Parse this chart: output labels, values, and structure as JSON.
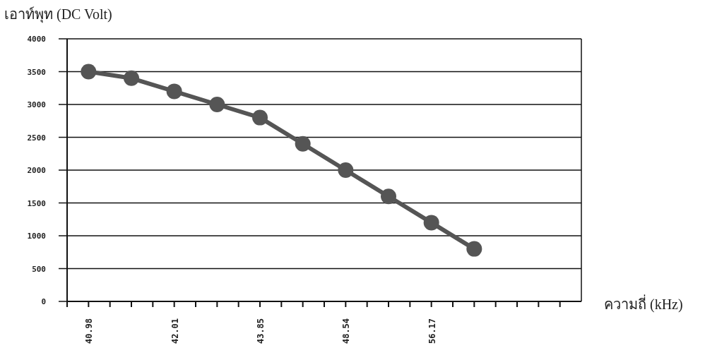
{
  "chart_data": {
    "type": "line",
    "ylabel": "เอาท์พุท (DC Volt)",
    "xlabel": "ความถี่ (kHz)",
    "categories": [
      "40.98",
      null,
      "42.01",
      null,
      "43.85",
      null,
      "48.54",
      null,
      "56.17",
      null,
      null,
      null
    ],
    "values": [
      3500,
      3400,
      3200,
      3000,
      2800,
      2400,
      2000,
      1600,
      1200,
      800,
      null,
      null
    ],
    "color": "#555555",
    "ylim": [
      0,
      4000
    ],
    "yticks": [
      0,
      500,
      1000,
      1500,
      2000,
      2500,
      3000,
      3500,
      4000
    ],
    "grid": "y",
    "marker": "circle",
    "line_style": "solid"
  }
}
